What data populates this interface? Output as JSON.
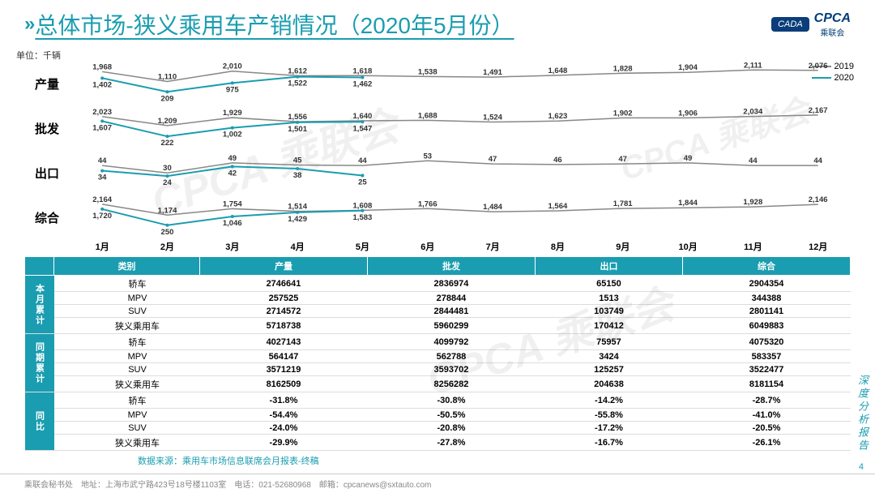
{
  "header": {
    "title": "总体市场-狭义乘用车产销情况（2020年5月份）",
    "logo_main": "CPCA",
    "logo_cn": "乘联会",
    "logo_badge": "CADA"
  },
  "unit": "单位：千辆",
  "legend": {
    "y2019": "2019",
    "y2020": "2020",
    "color2019": "#888888",
    "color2020": "#1a9db0"
  },
  "months": [
    "1月",
    "2月",
    "3月",
    "4月",
    "5月",
    "6月",
    "7月",
    "8月",
    "9月",
    "10月",
    "11月",
    "12月"
  ],
  "charts": [
    {
      "label": "产量",
      "s2019": [
        1968,
        1110,
        2010,
        1612,
        1618,
        1538,
        1491,
        1648,
        1828,
        1904,
        2111,
        2076
      ],
      "s2020": [
        1402,
        209,
        975,
        1522,
        1462
      ],
      "ymin": 0,
      "ymax": 2200
    },
    {
      "label": "批发",
      "s2019": [
        2023,
        1209,
        1929,
        1556,
        1640,
        1688,
        1524,
        1623,
        1902,
        1906,
        2034,
        2167
      ],
      "s2020": [
        1607,
        222,
        1002,
        1501,
        1547
      ],
      "ymin": 0,
      "ymax": 2300
    },
    {
      "label": "出口",
      "s2019": [
        44,
        30,
        49,
        45,
        44,
        53,
        47,
        46,
        47,
        49,
        44,
        44
      ],
      "s2020": [
        34,
        24,
        42,
        38,
        25
      ],
      "ymin": 10,
      "ymax": 58
    },
    {
      "label": "综合",
      "s2019": [
        2164,
        1174,
        1754,
        1514,
        1608,
        1766,
        1484,
        1564,
        1781,
        1844,
        1928,
        2146
      ],
      "s2020": [
        1720,
        250,
        1046,
        1429,
        1583
      ],
      "ymin": 0,
      "ymax": 2300
    }
  ],
  "table": {
    "headers": [
      "类别",
      "产量",
      "批发",
      "出口",
      "综合"
    ],
    "groups": [
      {
        "name": "本月累计",
        "rows": [
          [
            "轿车",
            "2746641",
            "2836974",
            "65150",
            "2904354"
          ],
          [
            "MPV",
            "257525",
            "278844",
            "1513",
            "344388"
          ],
          [
            "SUV",
            "2714572",
            "2844481",
            "103749",
            "2801141"
          ],
          [
            "狭义乘用车",
            "5718738",
            "5960299",
            "170412",
            "6049883"
          ]
        ]
      },
      {
        "name": "同期累计",
        "rows": [
          [
            "轿车",
            "4027143",
            "4099792",
            "75957",
            "4075320"
          ],
          [
            "MPV",
            "564147",
            "562788",
            "3424",
            "583357"
          ],
          [
            "SUV",
            "3571219",
            "3593702",
            "125257",
            "3522477"
          ],
          [
            "狭义乘用车",
            "8162509",
            "8256282",
            "204638",
            "8181154"
          ]
        ]
      },
      {
        "name": "同比",
        "rows": [
          [
            "轿车",
            "-31.8%",
            "-30.8%",
            "-14.2%",
            "-28.7%"
          ],
          [
            "MPV",
            "-54.4%",
            "-50.5%",
            "-55.8%",
            "-41.0%"
          ],
          [
            "SUV",
            "-24.0%",
            "-20.8%",
            "-17.2%",
            "-20.5%"
          ],
          [
            "狭义乘用车",
            "-29.9%",
            "-27.8%",
            "-16.7%",
            "-26.1%"
          ]
        ]
      }
    ]
  },
  "source": "数据来源：乘用车市场信息联席会月报表-终稿",
  "footer": {
    "left": "乘联会秘书处　地址：上海市武宁路423号18号楼1103室　电话：021-52680968　邮箱：cpcanews@sxtauto.com",
    "side": "深度分析报告",
    "page": "4"
  },
  "watermark": "CPCA 乘联会"
}
